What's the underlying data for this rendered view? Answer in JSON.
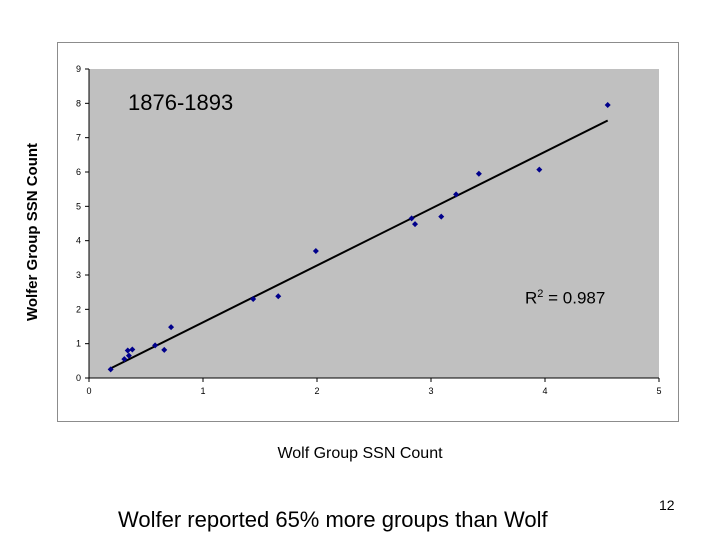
{
  "chart_data": {
    "type": "scatter",
    "period_label": "1876-1893",
    "xlabel": "Wolf Group SSN Count",
    "ylabel": "Wolfer Group SSN Count",
    "xlim": [
      0,
      5
    ],
    "ylim": [
      0,
      9
    ],
    "xticks": [
      "0",
      "1",
      "2",
      "3",
      "4",
      "5"
    ],
    "yticks": [
      "0",
      "1",
      "2",
      "3",
      "4",
      "5",
      "6",
      "7",
      "8",
      "9"
    ],
    "r2_prefix": "R",
    "r2_sup": "2",
    "r2_value": " = 0.987",
    "point_color": "#00008b",
    "plot_bg": "#c0c0c0",
    "points": [
      {
        "x": 0.19,
        "y": 0.25
      },
      {
        "x": 0.31,
        "y": 0.55
      },
      {
        "x": 0.34,
        "y": 0.8
      },
      {
        "x": 0.35,
        "y": 0.65
      },
      {
        "x": 0.38,
        "y": 0.83
      },
      {
        "x": 0.58,
        "y": 0.95
      },
      {
        "x": 0.66,
        "y": 0.82
      },
      {
        "x": 0.72,
        "y": 1.48
      },
      {
        "x": 1.44,
        "y": 2.3
      },
      {
        "x": 1.66,
        "y": 2.38
      },
      {
        "x": 1.99,
        "y": 3.7
      },
      {
        "x": 2.83,
        "y": 4.65
      },
      {
        "x": 2.86,
        "y": 4.48
      },
      {
        "x": 3.09,
        "y": 4.7
      },
      {
        "x": 3.22,
        "y": 5.35
      },
      {
        "x": 3.42,
        "y": 5.95
      },
      {
        "x": 3.95,
        "y": 6.07
      },
      {
        "x": 4.55,
        "y": 7.95
      }
    ],
    "trendline": {
      "x1": 0.19,
      "y1": 0.28,
      "x2": 4.55,
      "y2": 7.5
    }
  },
  "footer_text": "Wolfer reported 65% more groups than Wolf",
  "page_number": "12"
}
